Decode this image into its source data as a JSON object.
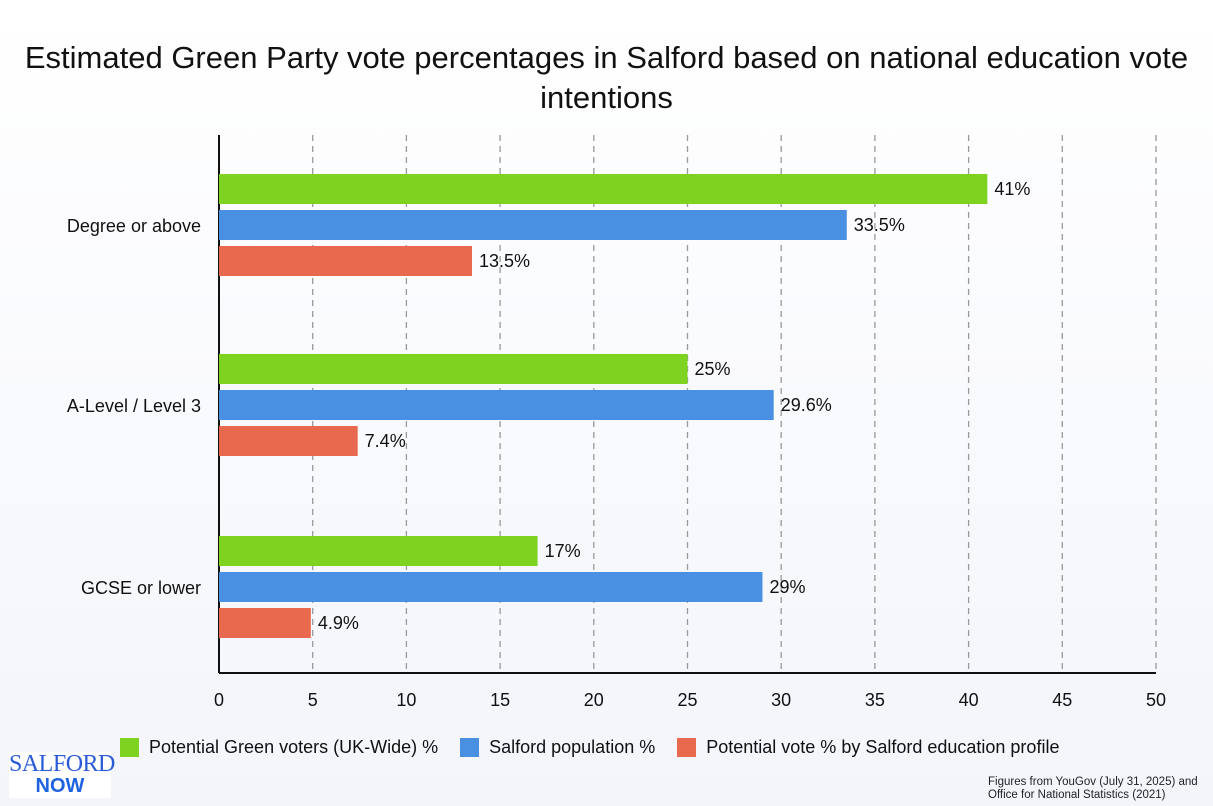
{
  "chart_data": {
    "type": "bar",
    "orientation": "horizontal",
    "title": "Estimated Green Party vote percentages in Salford based on national education vote intentions",
    "categories": [
      "Degree or above",
      "A-Level / Level 3",
      "GCSE or lower"
    ],
    "series": [
      {
        "name": "Potential Green voters (UK-Wide) %",
        "color": "#7ed321",
        "values": [
          41,
          25,
          17
        ],
        "labels": [
          "41%",
          "25%",
          "17%"
        ]
      },
      {
        "name": "Salford population %",
        "color": "#4a90e2",
        "values": [
          33.5,
          29.6,
          29
        ],
        "labels": [
          "33.5%",
          "29.6%",
          "29%"
        ]
      },
      {
        "name": "Potential vote % by Salford education profile",
        "color": "#e8694d",
        "values": [
          13.5,
          7.4,
          4.9
        ],
        "labels": [
          "13.5%",
          "7.4%",
          "4.9%"
        ]
      }
    ],
    "xlim": [
      0,
      50
    ],
    "xticks": [
      0,
      5,
      10,
      15,
      20,
      25,
      30,
      35,
      40,
      45,
      50
    ],
    "grid": "vertical dashed",
    "legend": "bottom"
  },
  "logo": {
    "line1": "SALFORD",
    "line2": "NOW"
  },
  "footnote": {
    "line1": "Figures from YouGov (July 31, 2025) and",
    "line2": "Office for National Statistics (2021)"
  }
}
